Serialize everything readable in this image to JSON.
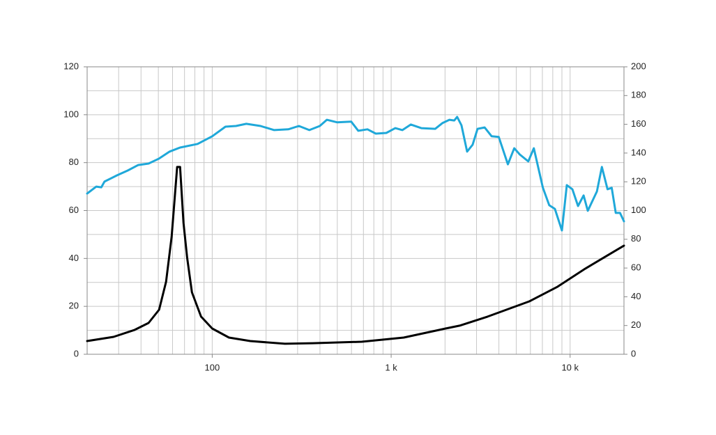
{
  "chart_data": {
    "type": "line",
    "xscale": "log",
    "grid": true,
    "xlim": [
      20,
      20000
    ],
    "ylim": [
      0,
      120
    ],
    "y2lim": [
      0,
      200
    ],
    "xticks": [
      100,
      {
        "value": 1000,
        "label": "1 k"
      },
      {
        "value": 10000,
        "label": "10 k"
      }
    ],
    "xgrid": [
      30,
      40,
      50,
      60,
      70,
      80,
      90,
      100,
      200,
      300,
      400,
      500,
      600,
      700,
      800,
      900,
      1000,
      2000,
      3000,
      4000,
      5000,
      6000,
      7000,
      8000,
      9000,
      10000
    ],
    "yticks": [
      0,
      20,
      40,
      60,
      80,
      100,
      120
    ],
    "ygrid": [
      10,
      20,
      30,
      40,
      50,
      60,
      70,
      80,
      90,
      100,
      110
    ],
    "y2ticks": [
      0,
      20,
      40,
      60,
      80,
      100,
      120,
      140,
      160,
      180,
      200
    ],
    "series": [
      {
        "color": "#1fa8d9",
        "axis": "y",
        "x": [
          20,
          22.5,
          24,
          25,
          29.4,
          33.7,
          38.6,
          44.1,
          50.5,
          57.8,
          66.1,
          82.8,
          100,
          118.6,
          135.8,
          155,
          186,
          222,
          266,
          305,
          349,
          399,
          437,
          500,
          598,
          655,
          737,
          821,
          939,
          1055,
          1156,
          1288,
          1474,
          1764,
          1932,
          2116,
          2253,
          2338,
          2470,
          2656,
          2853,
          3039,
          3328,
          3645,
          3993,
          4492,
          4872,
          5237,
          5836,
          6271,
          7048,
          7646,
          8222,
          9000,
          9582,
          10300,
          11070,
          11900,
          12560,
          14120,
          15050,
          16180,
          17080,
          17990,
          19000,
          20000
        ],
        "values": [
          67.1,
          70.0,
          69.7,
          72.1,
          74.7,
          76.7,
          79.0,
          79.6,
          81.7,
          84.6,
          86.3,
          87.8,
          91.0,
          95.0,
          95.3,
          96.2,
          95.3,
          93.6,
          93.9,
          95.3,
          93.6,
          95.3,
          97.9,
          96.8,
          97.1,
          93.3,
          93.9,
          92.1,
          92.4,
          94.4,
          93.6,
          95.9,
          94.4,
          94.1,
          96.5,
          97.9,
          97.6,
          99.1,
          95.6,
          84.6,
          87.5,
          94.1,
          94.7,
          91.0,
          90.7,
          79.3,
          86.0,
          83.4,
          80.5,
          86.0,
          69.5,
          62.2,
          60.7,
          51.7,
          70.6,
          68.9,
          61.9,
          66.3,
          59.9,
          68.0,
          78.2,
          68.9,
          69.5,
          59.0,
          59.0,
          55.5
        ]
      },
      {
        "color": "#000000",
        "axis": "y2",
        "x": [
          20,
          28.1,
          36.9,
          44.1,
          50.5,
          55.2,
          59.3,
          63.7,
          66.1,
          69.1,
          72.4,
          77.0,
          86.6,
          100,
          124,
          163,
          255,
          365,
          685,
          1176,
          2014,
          2412,
          3459,
          5917,
          8517,
          12170,
          16180,
          20000
        ],
        "values": [
          9.2,
          12.1,
          17.0,
          21.8,
          31.0,
          50.4,
          81.8,
          130.3,
          130.3,
          91.5,
          67.3,
          43.1,
          26.2,
          17.9,
          11.6,
          9.2,
          7.3,
          7.7,
          8.7,
          11.6,
          17.9,
          19.9,
          26.2,
          36.8,
          47.0,
          59.6,
          68.8,
          75.6
        ]
      }
    ]
  }
}
